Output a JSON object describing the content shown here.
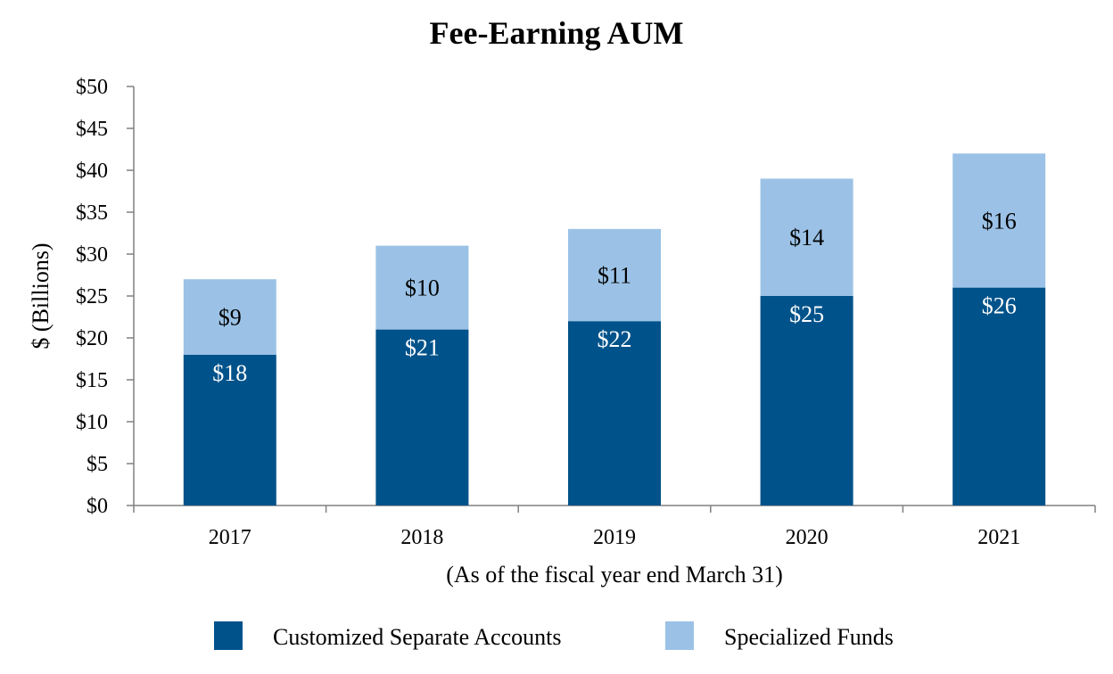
{
  "chart_data": {
    "type": "bar",
    "stacked": true,
    "title": "Fee-Earning AUM",
    "xlabel": "(As of the fiscal year end March 31)",
    "ylabel": "$ (Billions)",
    "ylim": [
      0,
      50
    ],
    "yticks": [
      "$0",
      "$5",
      "$10",
      "$15",
      "$20",
      "$25",
      "$30",
      "$35",
      "$40",
      "$45",
      "$50"
    ],
    "categories": [
      "2017",
      "2018",
      "2019",
      "2020",
      "2021"
    ],
    "series": [
      {
        "name": "Customized Separate Accounts",
        "color": "#00528a",
        "values": [
          18,
          21,
          22,
          25,
          26
        ],
        "labels": [
          "$18",
          "$21",
          "$22",
          "$25",
          "$26"
        ],
        "label_color": "#ffffff"
      },
      {
        "name": "Specialized Funds",
        "color": "#9bc2e6",
        "values": [
          9,
          10,
          11,
          14,
          16
        ],
        "labels": [
          "$9",
          "$10",
          "$11",
          "$14",
          "$16"
        ],
        "label_color": "#000000"
      }
    ],
    "legend": "bottom",
    "grid": false
  }
}
